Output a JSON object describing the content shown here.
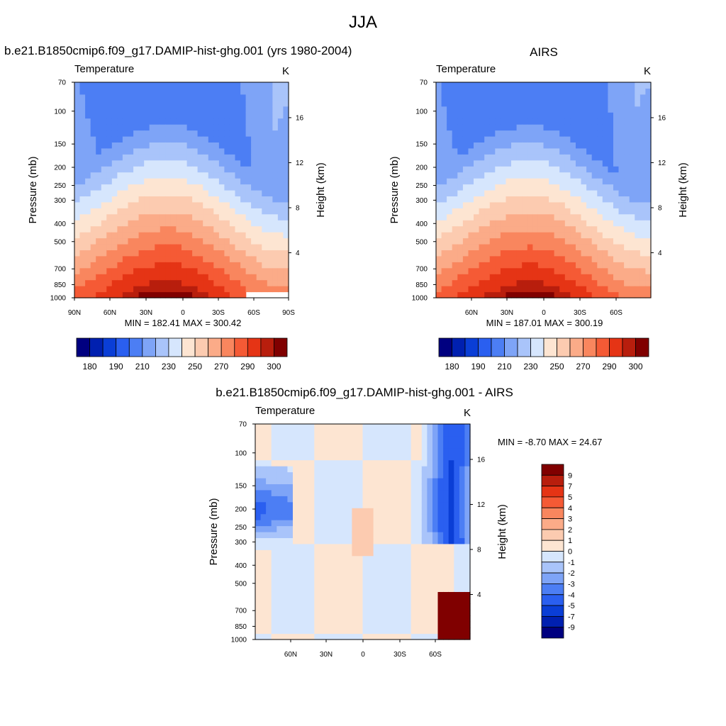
{
  "page_title": "JJA",
  "chart_data": [
    {
      "type": "heatmap",
      "panel": "model",
      "title": "b.e21.B1850cmip6.f09_g17.DAMIP-hist-ghg.001 (yrs 1980-2004)",
      "variable": "Temperature",
      "units": "K",
      "ylabel": "Pressure (mb)",
      "ylabel_right": "Height (km)",
      "y_scale": "log",
      "ylim": [
        1000,
        70
      ],
      "y_ticks": [
        "70",
        "100",
        "150",
        "200",
        "250",
        "300",
        "400",
        "500",
        "700",
        "850",
        "1000"
      ],
      "right_ticks": [
        "4",
        "8",
        "12",
        "16"
      ],
      "x_ticks": [
        "90N",
        "60N",
        "30N",
        "0",
        "30S",
        "60S",
        "90S"
      ],
      "stats": "MIN = 182.41  MAX = 300.42",
      "colorbar_labels": [
        "180",
        "190",
        "210",
        "230",
        "250",
        "270",
        "290",
        "300"
      ],
      "colors": [
        "#000080",
        "#0020b0",
        "#0a3ed6",
        "#2a5ff0",
        "#4c7ef4",
        "#7ea4f7",
        "#a9c4fa",
        "#d6e6fd",
        "#fde5d2",
        "#fccbb0",
        "#fbab88",
        "#f9865e",
        "#f55a35",
        "#e53415",
        "#b81e0d",
        "#800000"
      ]
    },
    {
      "type": "heatmap",
      "panel": "obs",
      "title": "AIRS",
      "variable": "Temperature",
      "units": "K",
      "ylabel": "Pressure (mb)",
      "ylabel_right": "Height (km)",
      "y_scale": "log",
      "ylim": [
        1000,
        70
      ],
      "y_ticks": [
        "70",
        "100",
        "150",
        "200",
        "250",
        "300",
        "400",
        "500",
        "700",
        "850",
        "1000"
      ],
      "right_ticks": [
        "4",
        "8",
        "12",
        "16"
      ],
      "x_ticks": [
        "60N",
        "30N",
        "0",
        "30S",
        "60S"
      ],
      "stats": "MIN = 187.01  MAX = 300.19",
      "colorbar_labels": [
        "180",
        "190",
        "210",
        "230",
        "250",
        "270",
        "290",
        "300"
      ],
      "colors": [
        "#000080",
        "#0020b0",
        "#0a3ed6",
        "#2a5ff0",
        "#4c7ef4",
        "#7ea4f7",
        "#a9c4fa",
        "#d6e6fd",
        "#fde5d2",
        "#fccbb0",
        "#fbab88",
        "#f9865e",
        "#f55a35",
        "#e53415",
        "#b81e0d",
        "#800000"
      ]
    },
    {
      "type": "heatmap",
      "panel": "diff",
      "title": "b.e21.B1850cmip6.f09_g17.DAMIP-hist-ghg.001 - AIRS",
      "variable": "Temperature",
      "units": "K",
      "ylabel": "Pressure (mb)",
      "ylabel_right": "Height (km)",
      "y_scale": "log",
      "ylim": [
        1000,
        70
      ],
      "y_ticks": [
        "70",
        "100",
        "150",
        "200",
        "250",
        "300",
        "400",
        "500",
        "700",
        "850",
        "1000"
      ],
      "right_ticks": [
        "4",
        "8",
        "12",
        "16"
      ],
      "x_ticks": [
        "60N",
        "30N",
        "0",
        "30S",
        "60S"
      ],
      "stats": "MIN =  -8.70  MAX =  24.67",
      "colorbar_labels": [
        "9",
        "7",
        "5",
        "4",
        "3",
        "2",
        "1",
        "0",
        "-1",
        "-2",
        "-3",
        "-4",
        "-5",
        "-7",
        "-9"
      ],
      "colors": [
        "#800000",
        "#b81e0d",
        "#e53415",
        "#f55a35",
        "#f9865e",
        "#fbab88",
        "#fccbb0",
        "#fde5d2",
        "#d6e6fd",
        "#a9c4fa",
        "#7ea4f7",
        "#4c7ef4",
        "#2a5ff0",
        "#0a3ed6",
        "#0020b0",
        "#000080"
      ]
    }
  ]
}
